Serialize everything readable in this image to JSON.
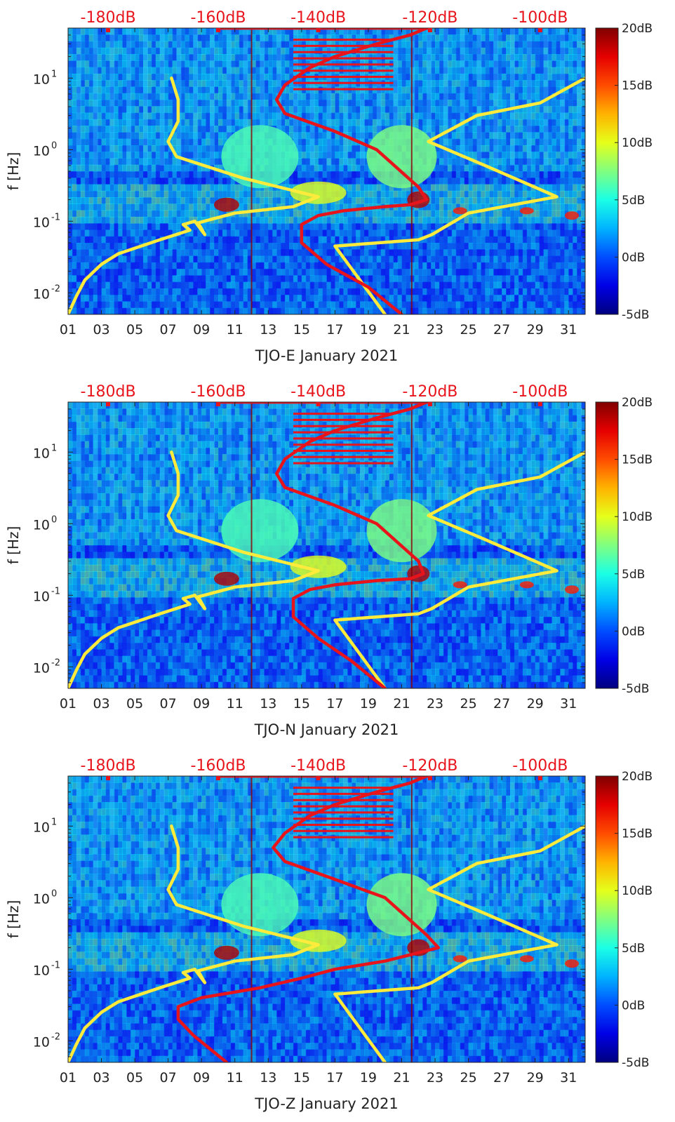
{
  "colors": {
    "yellow_curve": "#ffeb3b",
    "red_curve": "#e8141b",
    "top_label": "#e8141b",
    "axis": "#222222",
    "background_field": "#1a3fd6"
  },
  "chart_data": [
    {
      "type": "heatmap",
      "title": "TJO-E January 2021",
      "xlabel": "TJO-E January 2021",
      "ylabel": "f [Hz]",
      "x_tick_labels": [
        "01",
        "03",
        "05",
        "07",
        "09",
        "11",
        "13",
        "15",
        "17",
        "19",
        "21",
        "23",
        "25",
        "27",
        "29",
        "31"
      ],
      "x_ticks": [
        1,
        3,
        5,
        7,
        9,
        11,
        13,
        15,
        17,
        19,
        21,
        23,
        25,
        27,
        29,
        31
      ],
      "xlim": [
        1,
        32
      ],
      "y_scale": "log",
      "ylim": [
        0.005,
        50
      ],
      "y_ticks": [
        0.01,
        0.1,
        1,
        10
      ],
      "y_tick_labels": [
        {
          "base": "10",
          "exp": "-2"
        },
        {
          "base": "10",
          "exp": "-1"
        },
        {
          "base": "10",
          "exp": "0"
        },
        {
          "base": "10",
          "exp": "1"
        }
      ],
      "top_axis_labels": [
        "-180dB",
        "-160dB",
        "-140dB",
        "-120dB",
        "-100dB"
      ],
      "top_axis_days": [
        3.4,
        10,
        16,
        22.7,
        29.3
      ],
      "colorbar": {
        "range": [
          -5,
          20
        ],
        "labels": [
          "20dB",
          "15dB",
          "10dB",
          "5dB",
          "0dB",
          "-5dB"
        ],
        "values": [
          20,
          15,
          10,
          5,
          0,
          -5
        ]
      },
      "series": [
        {
          "name": "low-noise model (yellow)",
          "x": [
            1.0,
            1.5,
            2.0,
            3.0,
            4.0,
            6.5,
            8.3,
            7.9,
            8.6,
            9.2,
            8.8,
            11.0,
            14.5,
            16.0,
            11.5,
            7.5,
            7.0,
            7.6,
            7.6,
            7.2
          ],
          "y": [
            0.005,
            0.009,
            0.015,
            0.025,
            0.035,
            0.055,
            0.075,
            0.09,
            0.1,
            0.065,
            0.095,
            0.13,
            0.16,
            0.22,
            0.4,
            0.8,
            1.3,
            2.5,
            5.0,
            10.0
          ]
        },
        {
          "name": "high-noise model (yellow)",
          "x": [
            20.0,
            17.0,
            22.0,
            22.8,
            25.0,
            30.3,
            26.0,
            22.6,
            25.5,
            29.3,
            32.0
          ],
          "y": [
            0.005,
            0.045,
            0.055,
            0.065,
            0.13,
            0.22,
            0.6,
            1.3,
            3.0,
            4.5,
            10.0
          ]
        },
        {
          "name": "median PSD (red)",
          "x": [
            21.0,
            19.0,
            16.5,
            15.0,
            15.0,
            16.0,
            17.5,
            20.0,
            21.5,
            22.5,
            22.0,
            19.5,
            17.0,
            14.0,
            13.5,
            14.0,
            15.5,
            17.0,
            19.5,
            21.5,
            22.5
          ],
          "y": [
            0.005,
            0.012,
            0.025,
            0.05,
            0.09,
            0.12,
            0.14,
            0.16,
            0.17,
            0.2,
            0.3,
            1.0,
            1.8,
            3.2,
            5.0,
            8.0,
            14.0,
            20.0,
            30.0,
            40.0,
            50.0
          ]
        }
      ]
    },
    {
      "type": "heatmap",
      "title": "TJO-N January 2021",
      "xlabel": "TJO-N January 2021",
      "ylabel": "f [Hz]",
      "x_tick_labels": [
        "01",
        "03",
        "05",
        "07",
        "09",
        "11",
        "13",
        "15",
        "17",
        "19",
        "21",
        "23",
        "25",
        "27",
        "29",
        "31"
      ],
      "x_ticks": [
        1,
        3,
        5,
        7,
        9,
        11,
        13,
        15,
        17,
        19,
        21,
        23,
        25,
        27,
        29,
        31
      ],
      "xlim": [
        1,
        32
      ],
      "y_scale": "log",
      "ylim": [
        0.005,
        50
      ],
      "y_ticks": [
        0.01,
        0.1,
        1,
        10
      ],
      "y_tick_labels": [
        {
          "base": "10",
          "exp": "-2"
        },
        {
          "base": "10",
          "exp": "-1"
        },
        {
          "base": "10",
          "exp": "0"
        },
        {
          "base": "10",
          "exp": "1"
        }
      ],
      "top_axis_labels": [
        "-180dB",
        "-160dB",
        "-140dB",
        "-120dB",
        "-100dB"
      ],
      "top_axis_days": [
        3.4,
        10,
        16,
        22.7,
        29.3
      ],
      "colorbar": {
        "range": [
          -5,
          20
        ],
        "labels": [
          "20dB",
          "15dB",
          "10dB",
          "5dB",
          "0dB",
          "-5dB"
        ],
        "values": [
          20,
          15,
          10,
          5,
          0,
          -5
        ]
      },
      "series": [
        {
          "name": "low-noise model (yellow)",
          "x": [
            1.0,
            1.5,
            2.0,
            3.0,
            4.0,
            6.5,
            8.3,
            7.9,
            8.6,
            9.2,
            8.8,
            11.0,
            14.5,
            16.0,
            11.5,
            7.5,
            7.0,
            7.6,
            7.6,
            7.2
          ],
          "y": [
            0.005,
            0.009,
            0.015,
            0.025,
            0.035,
            0.055,
            0.075,
            0.09,
            0.1,
            0.065,
            0.095,
            0.13,
            0.16,
            0.22,
            0.4,
            0.8,
            1.3,
            2.5,
            5.0,
            10.0
          ]
        },
        {
          "name": "high-noise model (yellow)",
          "x": [
            20.0,
            17.0,
            22.0,
            22.8,
            25.0,
            30.3,
            26.0,
            22.6,
            25.5,
            29.3,
            32.0
          ],
          "y": [
            0.005,
            0.045,
            0.055,
            0.065,
            0.13,
            0.22,
            0.6,
            1.3,
            3.0,
            4.5,
            10.0
          ]
        },
        {
          "name": "median PSD (red)",
          "x": [
            20.0,
            18.0,
            16.0,
            14.5,
            14.5,
            15.5,
            17.0,
            19.5,
            21.5,
            22.3,
            22.0,
            19.5,
            17.0,
            14.0,
            13.5,
            14.0,
            15.5,
            17.0,
            19.5,
            21.5,
            22.5
          ],
          "y": [
            0.005,
            0.012,
            0.025,
            0.05,
            0.09,
            0.12,
            0.14,
            0.16,
            0.17,
            0.2,
            0.3,
            1.0,
            1.8,
            3.2,
            5.0,
            8.0,
            14.0,
            20.0,
            30.0,
            40.0,
            50.0
          ]
        }
      ]
    },
    {
      "type": "heatmap",
      "title": "TJO-Z January 2021",
      "xlabel": "TJO-Z January 2021",
      "ylabel": "f [Hz]",
      "x_tick_labels": [
        "01",
        "03",
        "05",
        "07",
        "09",
        "11",
        "13",
        "15",
        "17",
        "19",
        "21",
        "23",
        "25",
        "27",
        "29",
        "31"
      ],
      "x_ticks": [
        1,
        3,
        5,
        7,
        9,
        11,
        13,
        15,
        17,
        19,
        21,
        23,
        25,
        27,
        29,
        31
      ],
      "xlim": [
        1,
        32
      ],
      "y_scale": "log",
      "ylim": [
        0.005,
        50
      ],
      "y_ticks": [
        0.01,
        0.1,
        1,
        10
      ],
      "y_tick_labels": [
        {
          "base": "10",
          "exp": "-2"
        },
        {
          "base": "10",
          "exp": "-1"
        },
        {
          "base": "10",
          "exp": "0"
        },
        {
          "base": "10",
          "exp": "1"
        }
      ],
      "top_axis_labels": [
        "-180dB",
        "-160dB",
        "-140dB",
        "-120dB",
        "-100dB"
      ],
      "top_axis_days": [
        3.4,
        10,
        16,
        22.7,
        29.3
      ],
      "colorbar": {
        "range": [
          -5,
          20
        ],
        "labels": [
          "20dB",
          "15dB",
          "10dB",
          "5dB",
          "0dB",
          "-5dB"
        ],
        "values": [
          20,
          15,
          10,
          5,
          0,
          -5
        ]
      },
      "series": [
        {
          "name": "low-noise model (yellow)",
          "x": [
            1.0,
            1.5,
            2.0,
            3.0,
            4.0,
            6.5,
            8.3,
            7.9,
            8.6,
            9.2,
            8.8,
            11.0,
            14.5,
            16.0,
            11.5,
            7.5,
            7.0,
            7.6,
            7.6,
            7.2
          ],
          "y": [
            0.005,
            0.009,
            0.015,
            0.025,
            0.035,
            0.055,
            0.075,
            0.09,
            0.1,
            0.065,
            0.095,
            0.13,
            0.16,
            0.22,
            0.4,
            0.8,
            1.3,
            2.5,
            5.0,
            10.0
          ]
        },
        {
          "name": "high-noise model (yellow)",
          "x": [
            20.0,
            17.0,
            22.0,
            22.8,
            25.0,
            30.3,
            26.0,
            22.6,
            25.5,
            29.3,
            32.0
          ],
          "y": [
            0.005,
            0.045,
            0.055,
            0.065,
            0.13,
            0.22,
            0.6,
            1.3,
            3.0,
            4.5,
            10.0
          ]
        },
        {
          "name": "median PSD (red)",
          "x": [
            10.5,
            8.5,
            7.6,
            7.6,
            9.0,
            12.5,
            15.0,
            17.0,
            20.0,
            22.0,
            23.2,
            22.5,
            20.0,
            17.0,
            14.0,
            13.3,
            14.0,
            15.5,
            17.0,
            19.5,
            21.5,
            22.5
          ],
          "y": [
            0.005,
            0.012,
            0.02,
            0.03,
            0.04,
            0.055,
            0.075,
            0.1,
            0.13,
            0.17,
            0.2,
            0.3,
            1.0,
            1.8,
            3.2,
            5.0,
            8.0,
            14.0,
            20.0,
            30.0,
            40.0,
            50.0
          ]
        }
      ]
    }
  ]
}
